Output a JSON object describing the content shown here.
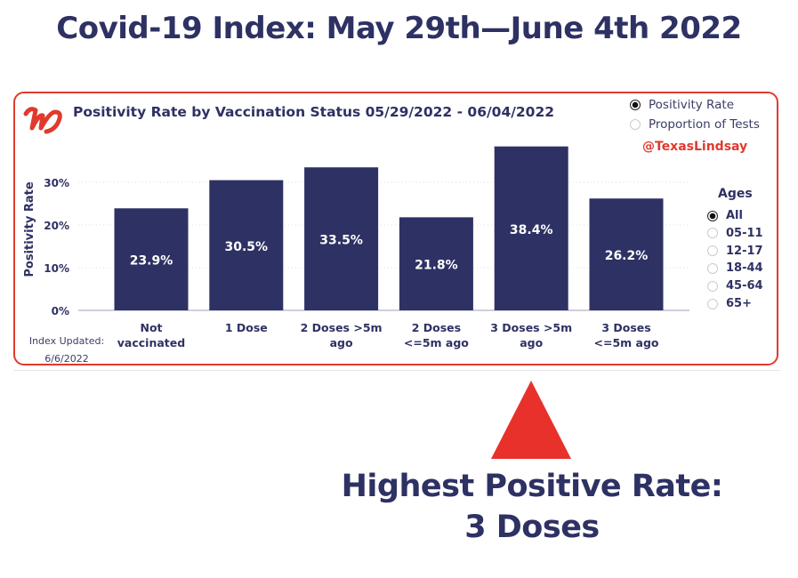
{
  "headline": "Covid-19 Index: May 29th—June 4th 2022",
  "card": {
    "title": "Positivity Rate by Vaccination Status 05/29/2022 - 06/04/2022",
    "logo_text": "W",
    "handle": "@TexasLindsay",
    "metric_options": [
      {
        "label": "Positivity Rate",
        "selected": true
      },
      {
        "label": "Proportion of Tests",
        "selected": false
      }
    ],
    "ages": {
      "title": "Ages",
      "options": [
        {
          "label": "All",
          "selected": true
        },
        {
          "label": "05-11",
          "selected": false
        },
        {
          "label": "12-17",
          "selected": false
        },
        {
          "label": "18-44",
          "selected": false
        },
        {
          "label": "45-64",
          "selected": false
        },
        {
          "label": "65+",
          "selected": false
        }
      ]
    },
    "updated_label": "Index Updated:",
    "updated_date": "6/6/2022"
  },
  "callout": {
    "line1": "Highest Positive Rate:",
    "line2": "3 Doses"
  },
  "colors": {
    "bar": "#2e3163",
    "accent": "#e03a2e",
    "arrow": "#e8312a"
  },
  "chart_data": {
    "type": "bar",
    "title": "Positivity Rate by Vaccination Status 05/29/2022 - 06/04/2022",
    "xlabel": "",
    "ylabel": "Positivity Rate",
    "categories": [
      [
        "Not",
        "vaccinated"
      ],
      [
        "1 Dose"
      ],
      [
        "2 Doses >5m",
        "ago"
      ],
      [
        "2 Doses",
        "<=5m ago"
      ],
      [
        "3 Doses >5m",
        "ago"
      ],
      [
        "3 Doses",
        "<=5m ago"
      ]
    ],
    "values": [
      23.9,
      30.5,
      33.5,
      21.8,
      38.4,
      26.2
    ],
    "data_labels": [
      "23.9%",
      "30.5%",
      "33.5%",
      "21.8%",
      "38.4%",
      "26.2%"
    ],
    "yticks": [
      0,
      10,
      20,
      30
    ],
    "ytick_labels": [
      "0%",
      "10%",
      "20%",
      "30%"
    ],
    "ylim": [
      0,
      40
    ],
    "grid": true
  }
}
